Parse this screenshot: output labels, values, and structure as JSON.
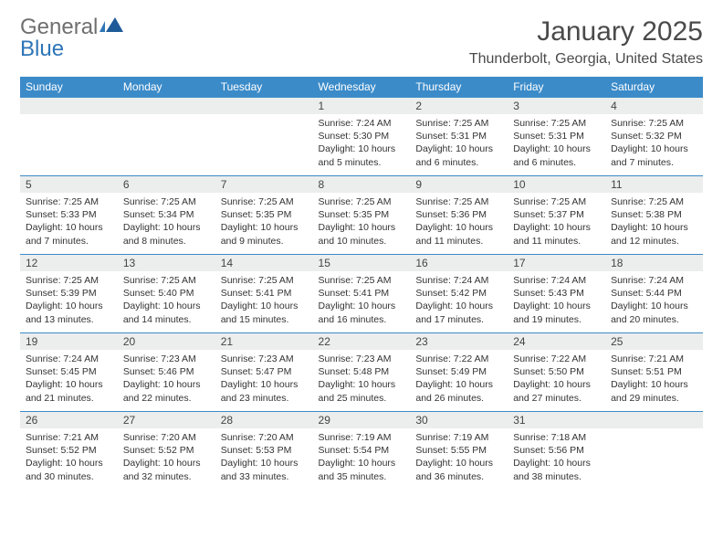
{
  "brand": {
    "word1": "General",
    "word2": "Blue"
  },
  "title": "January 2025",
  "location": "Thunderbolt, Georgia, United States",
  "colors": {
    "header_bg": "#3b8bc9",
    "header_text": "#ffffff",
    "daynum_bg": "#eceded",
    "cell_border": "#3b8bc9",
    "brand_gray": "#6f6f6f",
    "brand_blue": "#2e75b6",
    "page_bg": "#ffffff"
  },
  "weekdays": [
    "Sunday",
    "Monday",
    "Tuesday",
    "Wednesday",
    "Thursday",
    "Friday",
    "Saturday"
  ],
  "weeks": [
    [
      null,
      null,
      null,
      {
        "n": "1",
        "sr": "7:24 AM",
        "ss": "5:30 PM",
        "dl": "10 hours and 5 minutes."
      },
      {
        "n": "2",
        "sr": "7:25 AM",
        "ss": "5:31 PM",
        "dl": "10 hours and 6 minutes."
      },
      {
        "n": "3",
        "sr": "7:25 AM",
        "ss": "5:31 PM",
        "dl": "10 hours and 6 minutes."
      },
      {
        "n": "4",
        "sr": "7:25 AM",
        "ss": "5:32 PM",
        "dl": "10 hours and 7 minutes."
      }
    ],
    [
      {
        "n": "5",
        "sr": "7:25 AM",
        "ss": "5:33 PM",
        "dl": "10 hours and 7 minutes."
      },
      {
        "n": "6",
        "sr": "7:25 AM",
        "ss": "5:34 PM",
        "dl": "10 hours and 8 minutes."
      },
      {
        "n": "7",
        "sr": "7:25 AM",
        "ss": "5:35 PM",
        "dl": "10 hours and 9 minutes."
      },
      {
        "n": "8",
        "sr": "7:25 AM",
        "ss": "5:35 PM",
        "dl": "10 hours and 10 minutes."
      },
      {
        "n": "9",
        "sr": "7:25 AM",
        "ss": "5:36 PM",
        "dl": "10 hours and 11 minutes."
      },
      {
        "n": "10",
        "sr": "7:25 AM",
        "ss": "5:37 PM",
        "dl": "10 hours and 11 minutes."
      },
      {
        "n": "11",
        "sr": "7:25 AM",
        "ss": "5:38 PM",
        "dl": "10 hours and 12 minutes."
      }
    ],
    [
      {
        "n": "12",
        "sr": "7:25 AM",
        "ss": "5:39 PM",
        "dl": "10 hours and 13 minutes."
      },
      {
        "n": "13",
        "sr": "7:25 AM",
        "ss": "5:40 PM",
        "dl": "10 hours and 14 minutes."
      },
      {
        "n": "14",
        "sr": "7:25 AM",
        "ss": "5:41 PM",
        "dl": "10 hours and 15 minutes."
      },
      {
        "n": "15",
        "sr": "7:25 AM",
        "ss": "5:41 PM",
        "dl": "10 hours and 16 minutes."
      },
      {
        "n": "16",
        "sr": "7:24 AM",
        "ss": "5:42 PM",
        "dl": "10 hours and 17 minutes."
      },
      {
        "n": "17",
        "sr": "7:24 AM",
        "ss": "5:43 PM",
        "dl": "10 hours and 19 minutes."
      },
      {
        "n": "18",
        "sr": "7:24 AM",
        "ss": "5:44 PM",
        "dl": "10 hours and 20 minutes."
      }
    ],
    [
      {
        "n": "19",
        "sr": "7:24 AM",
        "ss": "5:45 PM",
        "dl": "10 hours and 21 minutes."
      },
      {
        "n": "20",
        "sr": "7:23 AM",
        "ss": "5:46 PM",
        "dl": "10 hours and 22 minutes."
      },
      {
        "n": "21",
        "sr": "7:23 AM",
        "ss": "5:47 PM",
        "dl": "10 hours and 23 minutes."
      },
      {
        "n": "22",
        "sr": "7:23 AM",
        "ss": "5:48 PM",
        "dl": "10 hours and 25 minutes."
      },
      {
        "n": "23",
        "sr": "7:22 AM",
        "ss": "5:49 PM",
        "dl": "10 hours and 26 minutes."
      },
      {
        "n": "24",
        "sr": "7:22 AM",
        "ss": "5:50 PM",
        "dl": "10 hours and 27 minutes."
      },
      {
        "n": "25",
        "sr": "7:21 AM",
        "ss": "5:51 PM",
        "dl": "10 hours and 29 minutes."
      }
    ],
    [
      {
        "n": "26",
        "sr": "7:21 AM",
        "ss": "5:52 PM",
        "dl": "10 hours and 30 minutes."
      },
      {
        "n": "27",
        "sr": "7:20 AM",
        "ss": "5:52 PM",
        "dl": "10 hours and 32 minutes."
      },
      {
        "n": "28",
        "sr": "7:20 AM",
        "ss": "5:53 PM",
        "dl": "10 hours and 33 minutes."
      },
      {
        "n": "29",
        "sr": "7:19 AM",
        "ss": "5:54 PM",
        "dl": "10 hours and 35 minutes."
      },
      {
        "n": "30",
        "sr": "7:19 AM",
        "ss": "5:55 PM",
        "dl": "10 hours and 36 minutes."
      },
      {
        "n": "31",
        "sr": "7:18 AM",
        "ss": "5:56 PM",
        "dl": "10 hours and 38 minutes."
      },
      null
    ]
  ],
  "labels": {
    "sunrise": "Sunrise:",
    "sunset": "Sunset:",
    "daylight": "Daylight:"
  }
}
